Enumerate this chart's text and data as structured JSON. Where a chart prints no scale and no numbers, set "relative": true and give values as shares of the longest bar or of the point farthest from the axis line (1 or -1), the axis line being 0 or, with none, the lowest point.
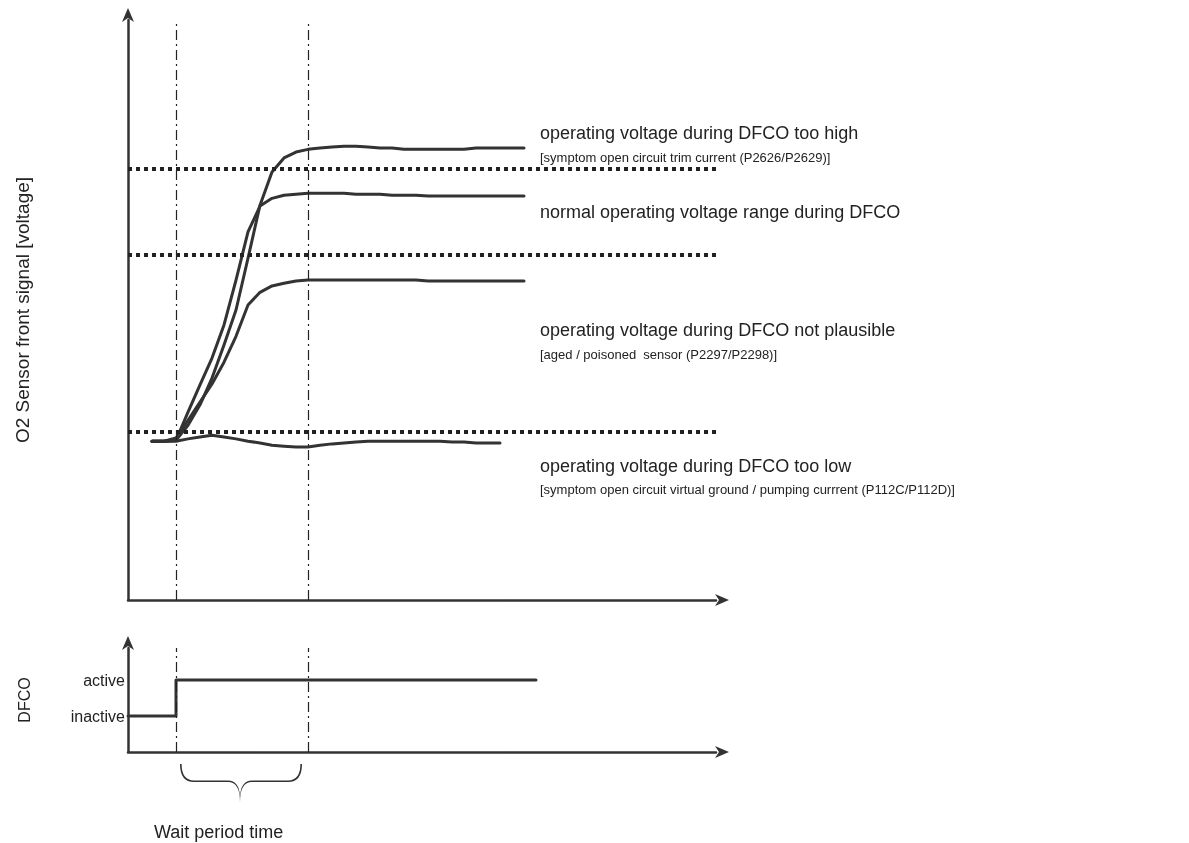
{
  "chart_data": [
    {
      "type": "line",
      "ylabel": "O2 Sensor front signal [voltage]",
      "relative": true,
      "marker": "none",
      "line_style": "solid",
      "categories": [
        null,
        null,
        null,
        null,
        null,
        null,
        null,
        null,
        null,
        null,
        null,
        null,
        null,
        null,
        null,
        null,
        null,
        null,
        null,
        null,
        null,
        null,
        null,
        null,
        null,
        null,
        null,
        null,
        null,
        null,
        null,
        null,
        null,
        null,
        null,
        null,
        null,
        null,
        null,
        null,
        null,
        null,
        null,
        null,
        null,
        null,
        null,
        null,
        null,
        null
      ],
      "series": [
        {
          "color": "#333333",
          "values": [
            null,
            null,
            0.35,
            0.35,
            0.352,
            0.385,
            0.43,
            0.489,
            0.562,
            0.639,
            0.753,
            0.87,
            0.943,
            0.974,
            0.987,
            0.993,
            0.996,
            0.998,
            1,
            1,
            0.998,
            0.996,
            0.996,
            0.993,
            0.993,
            0.993,
            0.993,
            0.993,
            0.993,
            0.996,
            0.996,
            0.996,
            0.996,
            0.996,
            null,
            null,
            null,
            null,
            null,
            null,
            null,
            null,
            null,
            null,
            null,
            null,
            null,
            null,
            null,
            null
          ]
        },
        {
          "color": "#333333",
          "values": [
            null,
            null,
            0.35,
            0.35,
            0.352,
            0.414,
            0.474,
            0.533,
            0.606,
            0.705,
            0.811,
            0.868,
            0.885,
            0.892,
            0.894,
            0.896,
            0.896,
            0.896,
            0.896,
            0.894,
            0.894,
            0.894,
            0.892,
            0.892,
            0.892,
            0.89,
            0.89,
            0.89,
            0.89,
            0.89,
            0.89,
            0.89,
            0.89,
            0.89,
            null,
            null,
            null,
            null,
            null,
            null,
            null,
            null,
            null,
            null,
            null,
            null,
            null,
            null,
            null,
            null
          ]
        },
        {
          "color": "#333333",
          "values": [
            null,
            null,
            0.35,
            0.35,
            0.357,
            0.396,
            0.436,
            0.476,
            0.524,
            0.581,
            0.65,
            0.678,
            0.692,
            0.698,
            0.703,
            0.705,
            0.705,
            0.705,
            0.705,
            0.705,
            0.705,
            0.705,
            0.705,
            0.705,
            0.705,
            0.703,
            0.703,
            0.703,
            0.703,
            0.703,
            0.703,
            0.703,
            0.703,
            0.703,
            null,
            null,
            null,
            null,
            null,
            null,
            null,
            null,
            null,
            null,
            null,
            null,
            null,
            null,
            null,
            null
          ]
        },
        {
          "color": "#333333",
          "values": [
            null,
            null,
            0.35,
            0.35,
            0.35,
            0.355,
            0.359,
            0.363,
            0.359,
            0.355,
            0.35,
            0.346,
            0.341,
            0.339,
            0.337,
            0.337,
            0.341,
            0.344,
            0.346,
            0.348,
            0.35,
            0.35,
            0.35,
            0.35,
            0.35,
            0.35,
            0.35,
            0.348,
            0.348,
            0.346,
            0.346,
            0.346,
            null,
            null,
            null,
            null,
            null,
            null,
            null,
            null,
            null,
            null,
            null,
            null,
            null,
            null,
            null,
            null,
            null,
            null
          ]
        }
      ],
      "ref_lines": [
        {
          "axis": "y",
          "value": 0.95,
          "line_style": "dotted",
          "color": "#222222"
        },
        {
          "axis": "y",
          "value": 0.76,
          "line_style": "dotted",
          "color": "#222222"
        },
        {
          "axis": "y",
          "value": 0.372,
          "line_style": "dotted",
          "color": "#222222"
        }
      ],
      "annotations": [
        "operating voltage during DFCO too high",
        "[symptom open circuit trim current (P2626/P2629)]",
        "normal operating voltage range during DFCO",
        "operating voltage during DFCO not plausible",
        "[aged / poisoned  sensor (P2297/P2298)]",
        "operating voltage during DFCO too low",
        "[symptom open circuit virtual ground / pumping currrent (P112C/P112D)]"
      ]
    },
    {
      "type": "step",
      "ylabel": "DFCO",
      "relative": true,
      "marker": "none",
      "line_style": "solid",
      "categories": [
        null,
        null,
        null,
        null,
        null,
        null,
        null,
        null,
        null,
        null,
        null,
        null,
        null,
        null,
        null,
        null,
        null,
        null,
        null,
        null,
        null,
        null,
        null,
        null,
        null,
        null,
        null,
        null,
        null,
        null,
        null,
        null,
        null,
        null,
        null,
        null,
        null,
        null,
        null,
        null,
        null,
        null,
        null,
        null,
        null,
        null,
        null,
        null,
        null,
        null
      ],
      "series": [
        {
          "color": "#333333",
          "values": [
            0.5,
            0.5,
            0.5,
            0.5,
            1,
            1,
            1,
            1,
            1,
            1,
            1,
            1,
            1,
            1,
            1,
            1,
            1,
            1,
            1,
            1,
            1,
            1,
            1,
            1,
            1,
            1,
            1,
            1,
            1,
            1,
            1,
            1,
            1,
            1,
            null,
            null,
            null,
            null,
            null,
            null,
            null,
            null,
            null,
            null,
            null,
            null,
            null,
            null,
            null,
            null
          ]
        }
      ],
      "annotations": [
        "active",
        "inactive",
        "Wait period time"
      ]
    }
  ]
}
